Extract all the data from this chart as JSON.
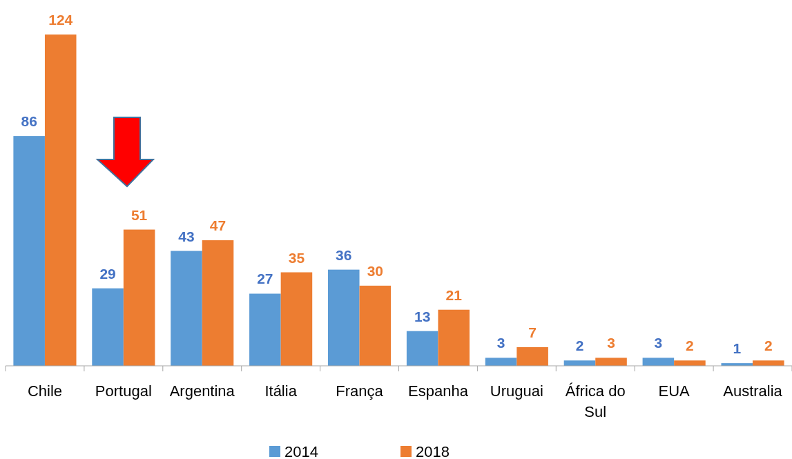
{
  "chart_data": {
    "type": "bar",
    "categories": [
      "Chile",
      "Portugal",
      "Argentina",
      "Itália",
      "França",
      "Espanha",
      "Uruguai",
      "África do Sul",
      "EUA",
      "Australia"
    ],
    "series": [
      {
        "name": "2014",
        "color": "#5b9bd5",
        "values": [
          86,
          29,
          43,
          27,
          36,
          13,
          3,
          2,
          3,
          1
        ]
      },
      {
        "name": "2018",
        "color": "#ed7d31",
        "values": [
          124,
          51,
          47,
          35,
          30,
          21,
          7,
          3,
          2,
          2
        ]
      }
    ],
    "data_labels": true,
    "legend": "bottom"
  }
}
